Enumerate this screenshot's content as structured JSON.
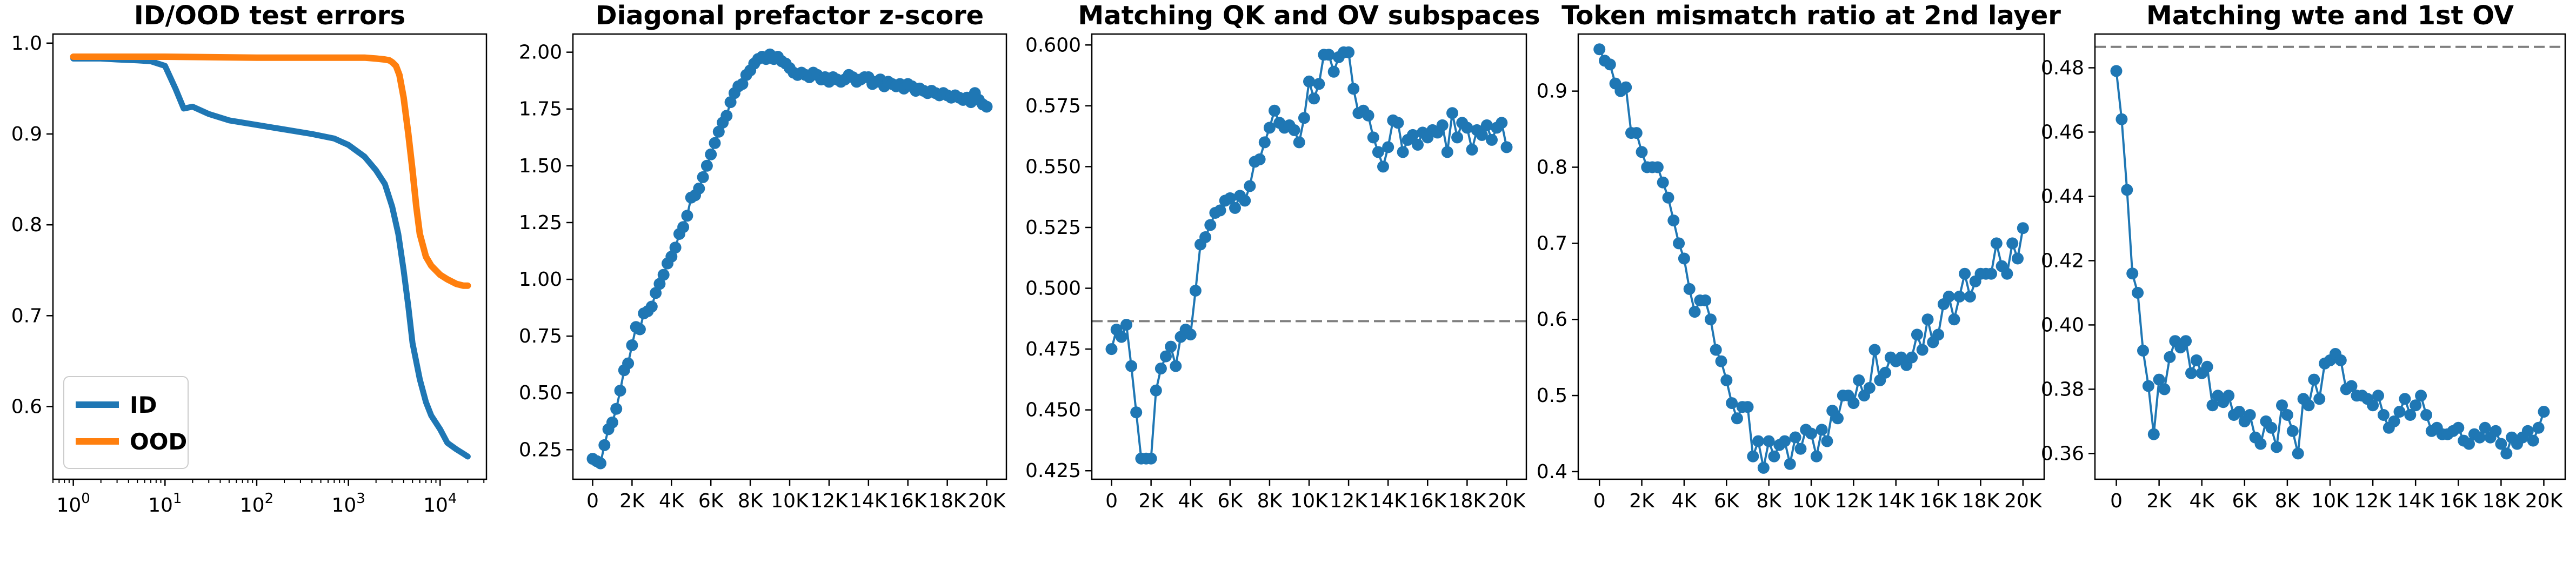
{
  "chart_data": [
    {
      "type": "line",
      "title": "ID/OOD test errors",
      "xscale": "log",
      "xlim": [
        0.6,
        32000
      ],
      "ylim": [
        0.52,
        1.01
      ],
      "xticks": [
        1,
        10,
        100,
        1000,
        10000
      ],
      "xtick_labels": [
        {
          "base": "10",
          "exp": "0"
        },
        {
          "base": "10",
          "exp": "1"
        },
        {
          "base": "10",
          "exp": "2"
        },
        {
          "base": "10",
          "exp": "3"
        },
        {
          "base": "10",
          "exp": "4"
        }
      ],
      "yticks": [
        0.6,
        0.7,
        0.8,
        0.9,
        1.0
      ],
      "ytick_labels": [
        "0.6",
        "0.7",
        "0.8",
        "0.9",
        "1.0"
      ],
      "legend": "lower-left",
      "grid": false,
      "series": [
        {
          "name": "ID",
          "color": "#1f77b4",
          "x": [
            1,
            2,
            3,
            5,
            7,
            10,
            13,
            16,
            20,
            30,
            50,
            100,
            200,
            400,
            700,
            1000,
            1500,
            2000,
            2500,
            3000,
            3500,
            4000,
            4500,
            5000,
            6000,
            7000,
            8000,
            10000,
            12000,
            15000,
            18000,
            20000
          ],
          "y": [
            0.983,
            0.983,
            0.982,
            0.981,
            0.98,
            0.975,
            0.95,
            0.928,
            0.93,
            0.922,
            0.915,
            0.91,
            0.905,
            0.9,
            0.895,
            0.888,
            0.875,
            0.86,
            0.845,
            0.82,
            0.79,
            0.75,
            0.71,
            0.67,
            0.63,
            0.605,
            0.59,
            0.575,
            0.56,
            0.553,
            0.548,
            0.545
          ]
        },
        {
          "name": "OOD",
          "color": "#ff7f0e",
          "x": [
            1,
            10,
            100,
            1000,
            1500,
            2000,
            2500,
            2800,
            3000,
            3300,
            3600,
            4000,
            4500,
            5000,
            5500,
            6000,
            7000,
            8000,
            10000,
            12000,
            15000,
            18000,
            20000
          ],
          "y": [
            0.985,
            0.985,
            0.984,
            0.984,
            0.984,
            0.983,
            0.982,
            0.981,
            0.979,
            0.975,
            0.965,
            0.94,
            0.9,
            0.86,
            0.82,
            0.79,
            0.765,
            0.755,
            0.745,
            0.74,
            0.735,
            0.733,
            0.733
          ]
        }
      ]
    },
    {
      "type": "line",
      "title": "Diagonal prefactor z-score",
      "xlim": [
        -1000,
        21000
      ],
      "ylim": [
        0.12,
        2.08
      ],
      "xticks": [
        0,
        2000,
        4000,
        6000,
        8000,
        10000,
        12000,
        14000,
        16000,
        18000,
        20000
      ],
      "xtick_labels": [
        "0",
        "2K",
        "4K",
        "6K",
        "8K",
        "10K",
        "12K",
        "14K",
        "16K",
        "18K",
        "20K"
      ],
      "yticks": [
        0.25,
        0.5,
        0.75,
        1.0,
        1.25,
        1.5,
        1.75,
        2.0
      ],
      "ytick_labels": [
        "0.25",
        "0.50",
        "0.75",
        "1.00",
        "1.25",
        "1.50",
        "1.75",
        "2.00"
      ],
      "grid": false,
      "markers": true,
      "series": [
        {
          "color": "#1f77b4",
          "x": [
            0,
            200,
            400,
            600,
            800,
            1000,
            1200,
            1400,
            1600,
            1800,
            2000,
            2200,
            2400,
            2600,
            2800,
            3000,
            3200,
            3400,
            3600,
            3800,
            4000,
            4200,
            4400,
            4600,
            4800,
            5000,
            5200,
            5400,
            5600,
            5800,
            6000,
            6200,
            6400,
            6600,
            6800,
            7000,
            7200,
            7400,
            7600,
            7800,
            8000,
            8200,
            8400,
            8600,
            8800,
            9000,
            9200,
            9400,
            9600,
            9800,
            10000,
            10200,
            10400,
            10600,
            10800,
            11000,
            11200,
            11400,
            11600,
            11800,
            12000,
            12200,
            12400,
            12600,
            12800,
            13000,
            13200,
            13400,
            13600,
            13800,
            14000,
            14200,
            14400,
            14600,
            14800,
            15000,
            15200,
            15400,
            15600,
            15800,
            16000,
            16200,
            16400,
            16600,
            16800,
            17000,
            17200,
            17400,
            17600,
            17800,
            18000,
            18200,
            18400,
            18600,
            18800,
            19000,
            19200,
            19400,
            19600,
            19800,
            20000
          ],
          "y": [
            0.21,
            0.2,
            0.19,
            0.27,
            0.34,
            0.37,
            0.43,
            0.51,
            0.6,
            0.63,
            0.71,
            0.79,
            0.78,
            0.85,
            0.86,
            0.88,
            0.94,
            0.98,
            1.02,
            1.07,
            1.1,
            1.14,
            1.2,
            1.23,
            1.28,
            1.36,
            1.37,
            1.4,
            1.45,
            1.5,
            1.55,
            1.6,
            1.65,
            1.69,
            1.72,
            1.78,
            1.82,
            1.85,
            1.86,
            1.9,
            1.92,
            1.95,
            1.97,
            1.98,
            1.97,
            1.99,
            1.97,
            1.98,
            1.96,
            1.95,
            1.93,
            1.91,
            1.9,
            1.91,
            1.9,
            1.89,
            1.91,
            1.9,
            1.88,
            1.89,
            1.87,
            1.89,
            1.88,
            1.87,
            1.88,
            1.9,
            1.89,
            1.87,
            1.88,
            1.89,
            1.89,
            1.86,
            1.87,
            1.88,
            1.85,
            1.87,
            1.86,
            1.85,
            1.86,
            1.84,
            1.86,
            1.85,
            1.83,
            1.84,
            1.83,
            1.82,
            1.83,
            1.82,
            1.81,
            1.82,
            1.81,
            1.8,
            1.81,
            1.8,
            1.79,
            1.8,
            1.78,
            1.82,
            1.79,
            1.77,
            1.76
          ]
        }
      ]
    },
    {
      "type": "line",
      "title": "Matching QK and OV subspaces",
      "xlim": [
        -1000,
        21000
      ],
      "ylim": [
        0.4215,
        0.6045
      ],
      "xticks": [
        0,
        2000,
        4000,
        6000,
        8000,
        10000,
        12000,
        14000,
        16000,
        18000,
        20000
      ],
      "xtick_labels": [
        "0",
        "2K",
        "4K",
        "6K",
        "8K",
        "10K",
        "12K",
        "14K",
        "16K",
        "18K",
        "20K"
      ],
      "yticks": [
        0.425,
        0.45,
        0.475,
        0.5,
        0.525,
        0.55,
        0.575,
        0.6
      ],
      "ytick_labels": [
        "0.425",
        "0.450",
        "0.475",
        "0.500",
        "0.525",
        "0.550",
        "0.575",
        "0.600"
      ],
      "reference_line": 0.4865,
      "grid": false,
      "markers": true,
      "series": [
        {
          "color": "#1f77b4",
          "x": [
            0,
            250,
            500,
            750,
            1000,
            1250,
            1500,
            1750,
            2000,
            2250,
            2500,
            2750,
            3000,
            3250,
            3500,
            3750,
            4000,
            4250,
            4500,
            4750,
            5000,
            5250,
            5500,
            5750,
            6000,
            6250,
            6500,
            6750,
            7000,
            7250,
            7500,
            7750,
            8000,
            8250,
            8500,
            8750,
            9000,
            9250,
            9500,
            9750,
            10000,
            10250,
            10500,
            10750,
            11000,
            11250,
            11500,
            11750,
            12000,
            12250,
            12500,
            12750,
            13000,
            13250,
            13500,
            13750,
            14000,
            14250,
            14500,
            14750,
            15000,
            15250,
            15500,
            15750,
            16000,
            16250,
            16500,
            16750,
            17000,
            17250,
            17500,
            17750,
            18000,
            18250,
            18500,
            18750,
            19000,
            19250,
            19500,
            19750,
            20000
          ],
          "y": [
            0.475,
            0.483,
            0.48,
            0.485,
            0.468,
            0.449,
            0.43,
            0.43,
            0.43,
            0.458,
            0.467,
            0.472,
            0.476,
            0.468,
            0.48,
            0.483,
            0.481,
            0.499,
            0.518,
            0.521,
            0.526,
            0.531,
            0.532,
            0.536,
            0.537,
            0.533,
            0.538,
            0.536,
            0.542,
            0.552,
            0.553,
            0.56,
            0.566,
            0.573,
            0.568,
            0.566,
            0.567,
            0.565,
            0.56,
            0.57,
            0.585,
            0.578,
            0.584,
            0.596,
            0.596,
            0.589,
            0.595,
            0.597,
            0.597,
            0.582,
            0.572,
            0.573,
            0.571,
            0.562,
            0.556,
            0.55,
            0.558,
            0.569,
            0.568,
            0.556,
            0.561,
            0.563,
            0.559,
            0.564,
            0.562,
            0.565,
            0.564,
            0.567,
            0.556,
            0.572,
            0.562,
            0.568,
            0.566,
            0.557,
            0.565,
            0.563,
            0.567,
            0.561,
            0.566,
            0.568,
            0.558
          ]
        }
      ]
    },
    {
      "type": "line",
      "title": "Token mismatch ratio at 2nd layer",
      "xlim": [
        -1000,
        21000
      ],
      "ylim": [
        0.39,
        0.975
      ],
      "xticks": [
        0,
        2000,
        4000,
        6000,
        8000,
        10000,
        12000,
        14000,
        16000,
        18000,
        20000
      ],
      "xtick_labels": [
        "0",
        "2K",
        "4K",
        "6K",
        "8K",
        "10K",
        "12K",
        "14K",
        "16K",
        "18K",
        "20K"
      ],
      "yticks": [
        0.4,
        0.5,
        0.6,
        0.7,
        0.8,
        0.9
      ],
      "ytick_labels": [
        "0.4",
        "0.5",
        "0.6",
        "0.7",
        "0.8",
        "0.9"
      ],
      "grid": false,
      "markers": true,
      "series": [
        {
          "color": "#1f77b4",
          "x": [
            0,
            250,
            500,
            750,
            1000,
            1250,
            1500,
            1750,
            2000,
            2250,
            2500,
            2750,
            3000,
            3250,
            3500,
            3750,
            4000,
            4250,
            4500,
            4750,
            5000,
            5250,
            5500,
            5750,
            6000,
            6250,
            6500,
            6750,
            7000,
            7250,
            7500,
            7750,
            8000,
            8250,
            8500,
            8750,
            9000,
            9250,
            9500,
            9750,
            10000,
            10250,
            10500,
            10750,
            11000,
            11250,
            11500,
            11750,
            12000,
            12250,
            12500,
            12750,
            13000,
            13250,
            13500,
            13750,
            14000,
            14250,
            14500,
            14750,
            15000,
            15250,
            15500,
            15750,
            16000,
            16250,
            16500,
            16750,
            17000,
            17250,
            17500,
            17750,
            18000,
            18250,
            18500,
            18750,
            19000,
            19250,
            19500,
            19750,
            20000
          ],
          "y": [
            0.955,
            0.94,
            0.935,
            0.91,
            0.9,
            0.905,
            0.845,
            0.845,
            0.82,
            0.8,
            0.8,
            0.8,
            0.78,
            0.76,
            0.73,
            0.7,
            0.68,
            0.64,
            0.61,
            0.625,
            0.625,
            0.6,
            0.56,
            0.545,
            0.52,
            0.49,
            0.47,
            0.485,
            0.485,
            0.42,
            0.44,
            0.405,
            0.44,
            0.42,
            0.435,
            0.44,
            0.41,
            0.445,
            0.43,
            0.455,
            0.45,
            0.42,
            0.455,
            0.44,
            0.48,
            0.47,
            0.5,
            0.5,
            0.49,
            0.52,
            0.5,
            0.51,
            0.56,
            0.52,
            0.53,
            0.55,
            0.545,
            0.55,
            0.54,
            0.55,
            0.58,
            0.56,
            0.6,
            0.57,
            0.58,
            0.62,
            0.63,
            0.6,
            0.63,
            0.66,
            0.63,
            0.65,
            0.66,
            0.66,
            0.66,
            0.7,
            0.67,
            0.66,
            0.7,
            0.68,
            0.72
          ]
        }
      ]
    },
    {
      "type": "line",
      "title": "Matching wte and 1st OV",
      "xlim": [
        -1000,
        21000
      ],
      "ylim": [
        0.352,
        0.4905
      ],
      "xticks": [
        0,
        2000,
        4000,
        6000,
        8000,
        10000,
        12000,
        14000,
        16000,
        18000,
        20000
      ],
      "xtick_labels": [
        "0",
        "2K",
        "4K",
        "6K",
        "8K",
        "10K",
        "12K",
        "14K",
        "16K",
        "18K",
        "20K"
      ],
      "yticks": [
        0.36,
        0.38,
        0.4,
        0.42,
        0.44,
        0.46,
        0.48
      ],
      "ytick_labels": [
        "0.36",
        "0.38",
        "0.40",
        "0.42",
        "0.44",
        "0.46",
        "0.48"
      ],
      "reference_line": 0.4865,
      "grid": false,
      "markers": true,
      "series": [
        {
          "color": "#1f77b4",
          "x": [
            0,
            250,
            500,
            750,
            1000,
            1250,
            1500,
            1750,
            2000,
            2250,
            2500,
            2750,
            3000,
            3250,
            3500,
            3750,
            4000,
            4250,
            4500,
            4750,
            5000,
            5250,
            5500,
            5750,
            6000,
            6250,
            6500,
            6750,
            7000,
            7250,
            7500,
            7750,
            8000,
            8250,
            8500,
            8750,
            9000,
            9250,
            9500,
            9750,
            10000,
            10250,
            10500,
            10750,
            11000,
            11250,
            11500,
            11750,
            12000,
            12250,
            12500,
            12750,
            13000,
            13250,
            13500,
            13750,
            14000,
            14250,
            14500,
            14750,
            15000,
            15250,
            15500,
            15750,
            16000,
            16250,
            16500,
            16750,
            17000,
            17250,
            17500,
            17750,
            18000,
            18250,
            18500,
            18750,
            19000,
            19250,
            19500,
            19750,
            20000
          ],
          "y": [
            0.479,
            0.464,
            0.442,
            0.416,
            0.41,
            0.392,
            0.381,
            0.366,
            0.383,
            0.38,
            0.39,
            0.395,
            0.393,
            0.395,
            0.385,
            0.389,
            0.385,
            0.387,
            0.375,
            0.378,
            0.376,
            0.378,
            0.372,
            0.373,
            0.37,
            0.372,
            0.365,
            0.363,
            0.37,
            0.368,
            0.362,
            0.375,
            0.372,
            0.367,
            0.36,
            0.377,
            0.375,
            0.383,
            0.377,
            0.388,
            0.389,
            0.391,
            0.389,
            0.38,
            0.381,
            0.378,
            0.378,
            0.377,
            0.375,
            0.378,
            0.372,
            0.368,
            0.37,
            0.373,
            0.377,
            0.372,
            0.375,
            0.378,
            0.372,
            0.367,
            0.368,
            0.366,
            0.366,
            0.367,
            0.368,
            0.364,
            0.363,
            0.366,
            0.365,
            0.368,
            0.365,
            0.367,
            0.363,
            0.36,
            0.365,
            0.363,
            0.365,
            0.367,
            0.364,
            0.368,
            0.373
          ]
        }
      ]
    }
  ]
}
